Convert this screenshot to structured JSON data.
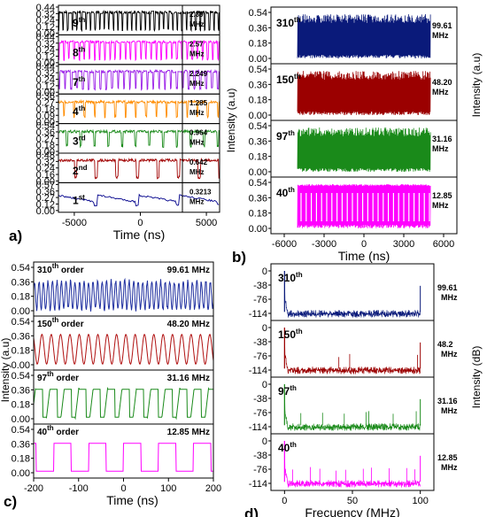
{
  "figure_panels": [
    {
      "id": "a",
      "letter": "a)",
      "xlabel": "Time (ns)",
      "xticks": [
        "-5000",
        "0",
        "5000"
      ]
    },
    {
      "id": "b",
      "letter": "b)",
      "xlabel": "Time (ns)",
      "ylabel": "Intensity (a.u)",
      "ylabel_right": "Intensity (a.u)",
      "xticks": [
        "-6000",
        "-3000",
        "0",
        "3000",
        "6000"
      ]
    },
    {
      "id": "c",
      "letter": "c)",
      "xlabel": "Time (ns)",
      "ylabel": "Intensity (a.u)",
      "xticks": [
        "-200",
        "-100",
        "0",
        "100",
        "200"
      ]
    },
    {
      "id": "d",
      "letter": "d)",
      "xlabel": "Frecuency (MHz)",
      "ylabel": "Intensity (dB)",
      "xticks": [
        "0",
        "50",
        "100"
      ]
    }
  ],
  "chart_data": [
    {
      "type": "line",
      "panel": "a",
      "xlim": [
        -6200,
        6000
      ],
      "series": [
        {
          "order": "9",
          "suffix": "th",
          "freq_value": "2.89",
          "freq_unit": "MHz",
          "color": "#000000",
          "yticks": [
            "0.00",
            "0.12",
            "0.24",
            "0.32",
            "0.44"
          ]
        },
        {
          "order": "8",
          "suffix": "th",
          "freq_value": "2.57",
          "freq_unit": "MHz",
          "color": "#ff00ff",
          "yticks": [
            "0.00",
            "0.12",
            "0.24",
            "0.32",
            "0.44"
          ]
        },
        {
          "order": "7",
          "suffix": "th",
          "freq_value": "2.249",
          "freq_unit": "MHz",
          "color": "#9b1fe8",
          "yticks": [
            "0.00",
            "0.12",
            "0.24",
            "0.32",
            "0.44"
          ]
        },
        {
          "order": "4",
          "suffix": "th",
          "freq_value": "1.285",
          "freq_unit": "MHz",
          "color": "#ff8c00",
          "yticks": [
            "0.00",
            "0.09",
            "0.18",
            "0.27",
            "0.36"
          ]
        },
        {
          "order": "3",
          "suffix": "rd",
          "freq_value": "0.964",
          "freq_unit": "MHz",
          "color": "#1a8a1a",
          "yticks": [
            "0.00",
            "0.18",
            "0.27",
            "0.36",
            "0.54"
          ]
        },
        {
          "order": "2",
          "suffix": "nd",
          "freq_value": "0.642",
          "freq_unit": "MHz",
          "color": "#a00000",
          "yticks": [
            "0.00",
            "0.16",
            "0.24",
            "0.32",
            "0.48"
          ]
        },
        {
          "order": "1",
          "suffix": "st",
          "freq_value": "0.3213",
          "freq_unit": "MHz",
          "color": "#00008b",
          "yticks": [
            "0.00",
            "0.12",
            "0.27",
            "0.36",
            "0.57"
          ]
        }
      ]
    },
    {
      "type": "line",
      "panel": "b",
      "xlim": [
        -7000,
        7000
      ],
      "series": [
        {
          "order": "310",
          "suffix": "th",
          "freq_value": "99.61",
          "freq_unit": "MHz",
          "color": "#0a1a7a",
          "yticks": [
            "0.00",
            "0.18",
            "0.36",
            "0.54"
          ]
        },
        {
          "order": "150",
          "suffix": "th",
          "freq_value": "48.20",
          "freq_unit": "MHz",
          "color": "#9b0000",
          "yticks": [
            "0.00",
            "0.18",
            "0.36",
            "0.54"
          ]
        },
        {
          "order": "97",
          "suffix": "th",
          "freq_value": "31.16",
          "freq_unit": "MHz",
          "color": "#1a8a1a",
          "yticks": [
            "0.00",
            "0.18",
            "0.36",
            "0.54"
          ]
        },
        {
          "order": "40",
          "suffix": "th",
          "freq_value": "12.85",
          "freq_unit": "MHz",
          "color": "#ff00ff",
          "yticks": [
            "0.00",
            "0.18",
            "0.36",
            "0.54"
          ]
        }
      ]
    },
    {
      "type": "line",
      "panel": "c",
      "xlim": [
        -200,
        200
      ],
      "series": [
        {
          "order": "310",
          "suffix": "th",
          "word": "order",
          "freq_label": "99.61 MHz",
          "color": "#2030a0",
          "yticks": [
            "0.00",
            "0.18",
            "0.36",
            "0.54"
          ]
        },
        {
          "order": "150",
          "suffix": "th",
          "word": "order",
          "freq_label": "48.20 MHz",
          "color": "#b01010",
          "yticks": [
            "0.00",
            "0.18",
            "0.36",
            "0.54"
          ]
        },
        {
          "order": "97",
          "suffix": "th",
          "word": "order",
          "freq_label": "31.16 MHz",
          "color": "#1a8a1a",
          "yticks": [
            "0.00",
            "0.18",
            "0.36",
            "0.54"
          ]
        },
        {
          "order": "40",
          "suffix": "th",
          "word": "order",
          "freq_label": "12.85 MHz",
          "color": "#ff00ff",
          "yticks": [
            "0.00",
            "0.18",
            "0.36",
            "0.54"
          ]
        }
      ]
    },
    {
      "type": "line",
      "panel": "d",
      "xlim": [
        -10,
        110
      ],
      "series": [
        {
          "order": "310",
          "suffix": "th",
          "freq_value": "99.61",
          "freq_unit": "MHz",
          "color": "#0a1a7a",
          "yticks": [
            "0",
            "-38",
            "-76",
            "-114"
          ]
        },
        {
          "order": "150",
          "suffix": "th",
          "freq_value": "48.2",
          "freq_unit": "MHz",
          "color": "#9b0000",
          "yticks": [
            "0",
            "-38",
            "-76",
            "-114"
          ]
        },
        {
          "order": "97",
          "suffix": "th",
          "freq_value": "31.16",
          "freq_unit": "MHz",
          "color": "#1a8a1a",
          "yticks": [
            "0",
            "-38",
            "-76",
            "-114"
          ]
        },
        {
          "order": "40",
          "suffix": "th",
          "freq_value": "12.85",
          "freq_unit": "MHz",
          "color": "#ff00ff",
          "yticks": [
            "0",
            "-38",
            "-76",
            "-114"
          ]
        }
      ]
    }
  ]
}
